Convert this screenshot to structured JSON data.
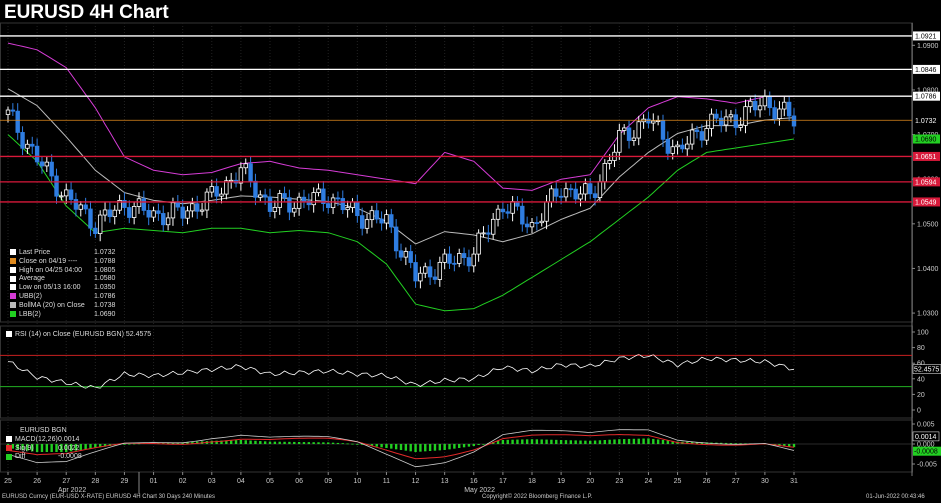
{
  "title": "EURUSD 4H Chart",
  "colors": {
    "background": "#000000",
    "up_candle": "#ffffff",
    "down_candle": "#2f7de1",
    "upper_band": "#d63cd6",
    "lower_band": "#22d022",
    "middle_band": "#bbbbbb",
    "resistance": "#ffffff",
    "support": "#d8193a",
    "rsi_line": "#ffffff",
    "macd_hist_pos": "#22d022",
    "macd_hist_neg": "#22d022",
    "sig_line": "#e22a2a",
    "macd_line": "#cccccc"
  },
  "x_axis": {
    "ticks": [
      "25",
      "26",
      "27",
      "28",
      "29",
      "01",
      "02",
      "03",
      "04",
      "05",
      "06",
      "09",
      "10",
      "11",
      "12",
      "13",
      "16",
      "17",
      "18",
      "19",
      "20",
      "23",
      "24",
      "25",
      "26",
      "27",
      "30",
      "31"
    ],
    "month_labels": [
      "Apr 2022",
      "May 2022"
    ]
  },
  "price_panel": {
    "ticks": [
      "1.0900",
      "1.0800",
      "1.0700",
      "1.0600",
      "1.0500",
      "1.0400",
      "1.0300"
    ],
    "resistance_levels": [
      {
        "label": "1.0921",
        "value": 1.0921
      },
      {
        "label": "1.0846",
        "value": 1.0846
      },
      {
        "label": "1.0786",
        "value": 1.0786
      }
    ],
    "support_levels": [
      {
        "label": "1.0651",
        "value": 1.0651
      },
      {
        "label": "1.0594",
        "value": 1.0594
      },
      {
        "label": "1.0549",
        "value": 1.0549
      }
    ],
    "last_price_tag": {
      "label": "1.0732",
      "value": 1.0732
    },
    "lbb_tag": {
      "label": "1.0690",
      "value": 1.069
    }
  },
  "legend": [
    {
      "text": "Last Price",
      "value": "1.0732",
      "color": "#ffffff"
    },
    {
      "text": "Close on 04/19 ----",
      "value": "1.0788",
      "color": "#e08a1e"
    },
    {
      "text": "High on 04/25 04:00",
      "value": "1.0805",
      "color": "#ffffff"
    },
    {
      "text": "Average",
      "value": "1.0580",
      "color": "#ffffff"
    },
    {
      "text": "Low on 05/13 16:00",
      "value": "1.0350",
      "color": "#ffffff"
    },
    {
      "text": "UBB(2)",
      "value": "1.0786",
      "color": "#d63cd6"
    },
    {
      "text": "BollMA (20)  on Close",
      "value": "1.0738",
      "color": "#bbbbbb"
    },
    {
      "text": "LBB(2)",
      "value": "1.0690",
      "color": "#22d022"
    }
  ],
  "rsi_panel": {
    "label": "RSI (14)  on Close (EURUSD BGN)  52.4575",
    "ticks": [
      "100",
      "80",
      "60",
      "40",
      "20",
      "0"
    ],
    "value_tag": "52.4575",
    "overbought": 70,
    "oversold": 30
  },
  "macd_panel": {
    "title": "EURUSD BGN",
    "rows": [
      {
        "text": "MACD(12,26)",
        "value": "0.0014",
        "color": "#ffffff"
      },
      {
        "text": "Sig(9)",
        "value": "0.0022",
        "color": "#e22a2a"
      },
      {
        "text": "Diff",
        "value": "-0.0008",
        "color": "#22d022"
      }
    ],
    "ticks": [
      "0.005",
      "0.000",
      "-0.005"
    ],
    "tags": [
      "0.0014",
      "-0.0008"
    ]
  },
  "footer": {
    "left": "EURUSD Curncy (EUR-USD X-RATE)  EURUSD 4H Chart 30 Days 240 Minutes",
    "center": "Copyright© 2022 Bloomberg Finance L.P.",
    "right": "01-Jun-2022 00:43:46"
  },
  "chart_data": {
    "type": "candlestick",
    "title": "EURUSD 4H Chart",
    "x_categories": [
      "25",
      "26",
      "27",
      "28",
      "29",
      "01",
      "02",
      "03",
      "04",
      "05",
      "06",
      "09",
      "10",
      "11",
      "12",
      "13",
      "16",
      "17",
      "18",
      "19",
      "20",
      "23",
      "24",
      "25",
      "26",
      "27",
      "30",
      "31"
    ],
    "daily_closes_approx": [
      1.0745,
      1.0645,
      1.056,
      1.05,
      1.0545,
      1.052,
      1.0525,
      1.056,
      1.062,
      1.054,
      1.055,
      1.056,
      1.052,
      1.0505,
      1.038,
      1.041,
      1.0435,
      1.0545,
      1.0495,
      1.058,
      1.056,
      1.069,
      1.0735,
      1.066,
      1.0725,
      1.0735,
      1.0775,
      1.0732
    ],
    "upper_band_daily_approx": [
      1.0905,
      1.089,
      1.085,
      1.076,
      1.065,
      1.062,
      1.061,
      1.0615,
      1.0635,
      1.064,
      1.0625,
      1.062,
      1.061,
      1.06,
      1.059,
      1.066,
      1.064,
      1.058,
      1.0575,
      1.06,
      1.061,
      1.07,
      1.076,
      1.0785,
      1.078,
      1.077,
      1.0785,
      1.0786
    ],
    "lower_band_daily_approx": [
      1.07,
      1.064,
      1.054,
      1.048,
      1.049,
      1.0485,
      1.048,
      1.049,
      1.049,
      1.048,
      1.0485,
      1.048,
      1.046,
      1.041,
      1.032,
      1.0305,
      1.031,
      1.034,
      1.038,
      1.042,
      1.046,
      1.051,
      1.056,
      1.062,
      1.066,
      1.067,
      1.068,
      1.069
    ],
    "support_levels": [
      1.0651,
      1.0594,
      1.0549
    ],
    "resistance_levels": [
      1.0921,
      1.0846,
      1.0786
    ],
    "last_price": 1.0732,
    "ylim": [
      1.028,
      1.095
    ],
    "rsi": {
      "daily_approx": [
        62,
        42,
        35,
        28,
        46,
        44,
        48,
        52,
        56,
        46,
        48,
        50,
        46,
        44,
        32,
        38,
        40,
        55,
        50,
        58,
        56,
        66,
        70,
        58,
        66,
        64,
        62,
        52.4575
      ],
      "ylim": [
        0,
        100
      ],
      "last": 52.4575
    },
    "macd": {
      "macd_last": 0.0014,
      "signal_last": 0.0022,
      "diff_last": -0.0008,
      "hist_daily_approx": [
        -0.001,
        -0.002,
        -0.002,
        -0.001,
        0.0,
        0.0003,
        0.0004,
        0.0008,
        0.001,
        0.0006,
        0.0005,
        0.0004,
        0.0,
        -0.001,
        -0.002,
        -0.0015,
        -0.0005,
        0.001,
        0.0012,
        0.001,
        0.0008,
        0.0012,
        0.0014,
        0.0006,
        0.0004,
        0.0002,
        0.0001,
        -0.0008
      ],
      "ylim": [
        -0.007,
        0.006
      ]
    }
  }
}
